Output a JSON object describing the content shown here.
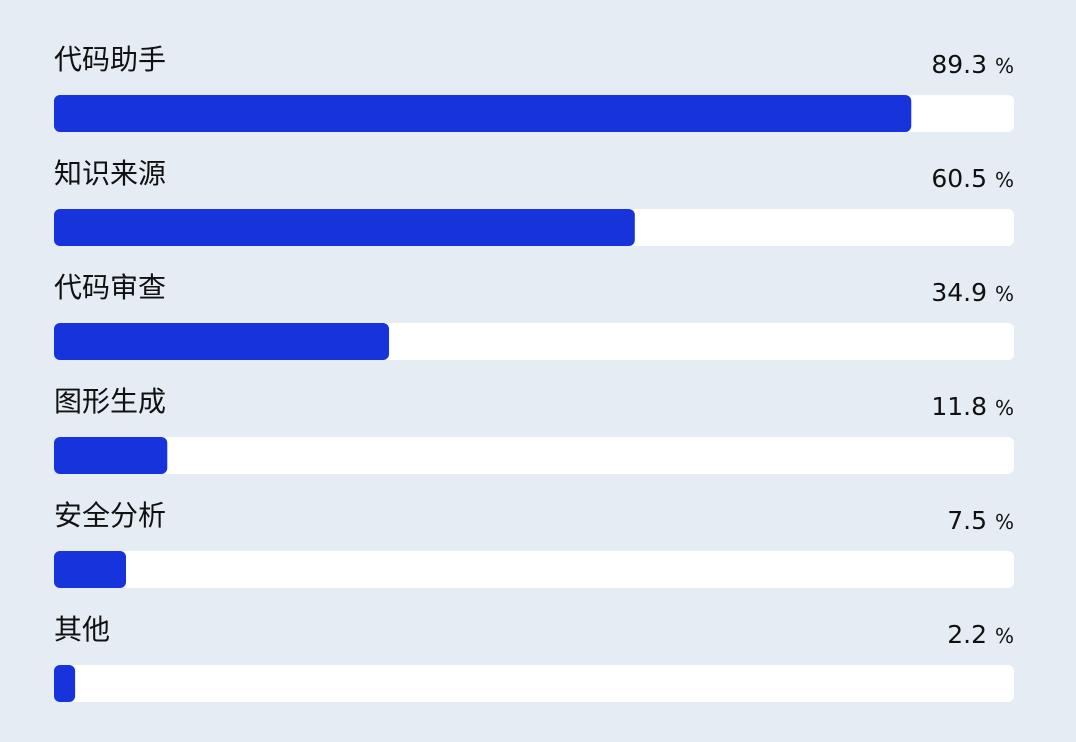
{
  "chart_data": {
    "type": "bar",
    "categories": [
      "代码助手",
      "知识来源",
      "代码审查",
      "图形生成",
      "安全分析",
      "其他"
    ],
    "values": [
      89.3,
      60.5,
      34.9,
      11.8,
      7.5,
      2.2
    ],
    "unit": "%",
    "color": "#1733dc",
    "xlim": [
      0,
      100
    ]
  }
}
